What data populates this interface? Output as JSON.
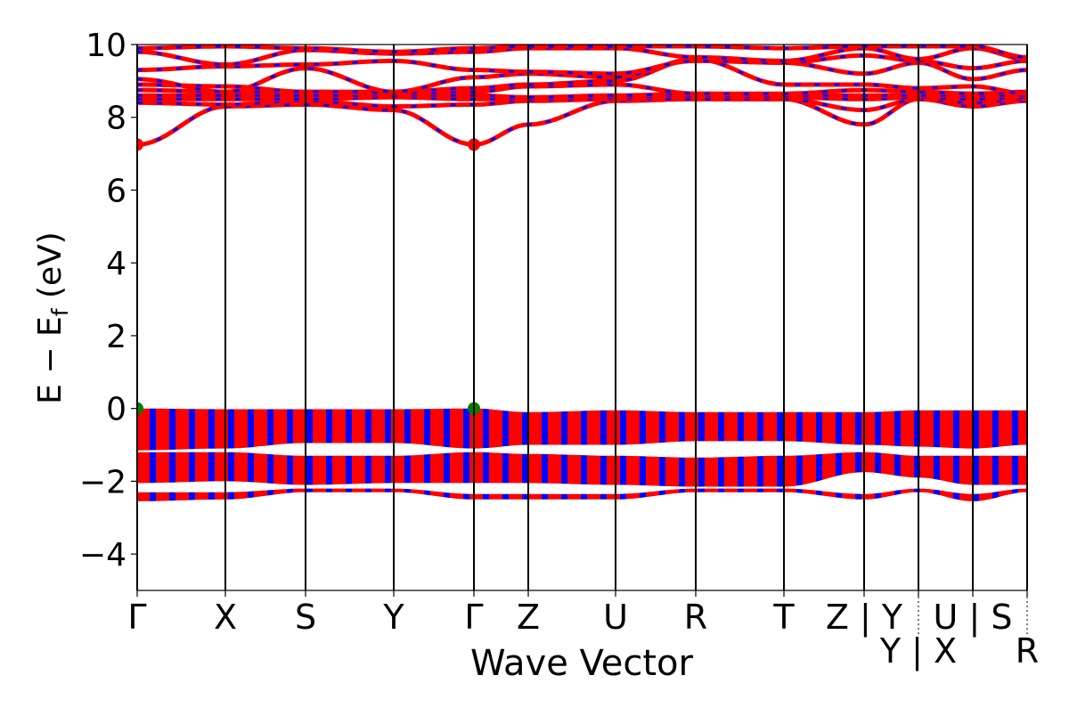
{
  "chart_data": {
    "type": "line",
    "title": "",
    "xlabel": "Wave Vector",
    "ylabel": "E − E",
    "ylabel_sub": "f",
    "ylabel_unit": " (eV)",
    "ylim": [
      -5,
      10
    ],
    "yticks": [
      -4,
      -2,
      0,
      2,
      4,
      6,
      8,
      10
    ],
    "ytick_labels": [
      "−4",
      "−2",
      "0",
      "2",
      "4",
      "6",
      "8",
      "10"
    ],
    "kpoints": [
      0,
      0.99,
      1.89,
      2.88,
      3.78,
      4.39,
      5.37,
      6.27,
      7.26,
      8.16,
      8.77,
      9.38,
      9.99
    ],
    "kpoint_labels": [
      "Γ",
      "X",
      "S",
      "Y",
      "Γ",
      "Z",
      "U",
      "R",
      "T",
      "Z | Y",
      "Y | X",
      "U | S",
      "R"
    ],
    "grid": false,
    "colors": {
      "band_primary": "#ff0000",
      "band_secondary": "#0000ff",
      "vbm_marker": "#008000",
      "cbm_marker": "#ff0000",
      "kpoint_lines": "#000000"
    },
    "conduction_bands": [
      [
        7.25,
        8.3,
        8.35,
        8.2,
        7.25,
        7.8,
        8.45,
        8.5,
        8.5,
        7.8,
        8.5,
        8.3,
        8.45
      ],
      [
        8.4,
        8.35,
        8.45,
        8.3,
        8.35,
        8.45,
        8.5,
        8.5,
        8.5,
        8.2,
        8.5,
        8.4,
        8.5
      ],
      [
        8.5,
        8.5,
        8.5,
        8.55,
        8.5,
        8.5,
        8.55,
        8.6,
        8.55,
        8.5,
        8.55,
        8.5,
        8.55
      ],
      [
        8.6,
        8.6,
        8.6,
        8.6,
        8.6,
        8.55,
        8.6,
        8.65,
        8.6,
        8.6,
        8.6,
        8.6,
        8.6
      ],
      [
        8.75,
        8.7,
        8.7,
        8.65,
        8.7,
        8.85,
        8.9,
        8.65,
        8.65,
        8.75,
        8.7,
        8.65,
        8.7
      ],
      [
        8.9,
        8.85,
        8.7,
        8.7,
        8.8,
        8.9,
        9.0,
        9.6,
        8.9,
        8.9,
        8.8,
        8.85,
        8.65
      ],
      [
        9.05,
        8.7,
        9.35,
        8.7,
        9.1,
        9.2,
        9.1,
        9.6,
        9.5,
        9.2,
        9.5,
        9.05,
        9.3
      ],
      [
        9.3,
        9.4,
        9.45,
        9.55,
        9.3,
        9.25,
        9.2,
        9.55,
        9.5,
        9.7,
        9.55,
        9.35,
        9.55
      ],
      [
        9.8,
        9.45,
        9.85,
        9.75,
        9.8,
        9.9,
        9.9,
        9.65,
        9.55,
        9.9,
        9.6,
        9.9,
        9.6
      ],
      [
        9.9,
        9.95,
        9.9,
        9.8,
        9.9,
        9.95,
        9.95,
        9.95,
        9.9,
        9.95,
        9.95,
        9.95,
        9.65
      ]
    ],
    "valence_groups": [
      {
        "top": [
          0,
          -0.02,
          -0.02,
          -0.02,
          0,
          -0.1,
          -0.05,
          -0.1,
          -0.1,
          -0.1,
          -0.05,
          -0.05,
          -0.05
        ],
        "bottom": [
          -1.15,
          -1.1,
          -0.95,
          -0.95,
          -1.1,
          -1.0,
          -1.0,
          -0.9,
          -0.9,
          -1.0,
          -1.05,
          -1.1,
          -1.0
        ]
      },
      {
        "top": [
          -1.2,
          -1.2,
          -1.3,
          -1.3,
          -1.2,
          -1.25,
          -1.3,
          -1.35,
          -1.3,
          -1.2,
          -1.3,
          -1.3,
          -1.3
        ],
        "bottom": [
          -2.05,
          -2.0,
          -2.1,
          -2.05,
          -2.05,
          -2.05,
          -2.1,
          -2.15,
          -2.15,
          -1.75,
          -1.9,
          -2.1,
          -2.1
        ]
      },
      {
        "top": [
          -2.3,
          -2.3,
          -2.2,
          -2.2,
          -2.35,
          -2.35,
          -2.35,
          -2.2,
          -2.2,
          -2.35,
          -2.2,
          -2.35,
          -2.2
        ],
        "bottom": [
          -2.55,
          -2.5,
          -2.3,
          -2.3,
          -2.5,
          -2.5,
          -2.5,
          -2.3,
          -2.3,
          -2.5,
          -2.3,
          -2.55,
          -2.3
        ]
      }
    ],
    "markers": [
      {
        "k": 0,
        "E": 7.25,
        "type": "cbm"
      },
      {
        "k": 3.78,
        "E": 7.25,
        "type": "cbm"
      },
      {
        "k": 0,
        "E": 0,
        "type": "vbm"
      },
      {
        "k": 3.78,
        "E": 0,
        "type": "vbm"
      }
    ]
  }
}
